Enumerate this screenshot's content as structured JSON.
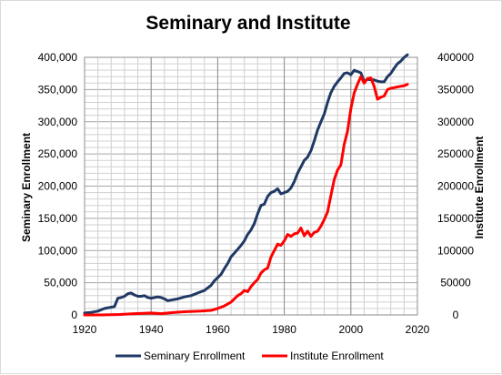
{
  "chart_data": {
    "type": "line",
    "title": "Seminary and Institute",
    "xlabel": "",
    "ylabel": "Seminary Enrollment",
    "y2label": "Institute Enrollment",
    "xlim": [
      1920,
      2020
    ],
    "ylim": [
      0,
      400000
    ],
    "y2lim": [
      0,
      400000
    ],
    "x_ticks": [
      "1920",
      "1940",
      "1960",
      "1980",
      "2000",
      "2020"
    ],
    "y_ticks": [
      "0",
      "50,000",
      "100,000",
      "150,000",
      "200,000",
      "250,000",
      "300,000",
      "350,000",
      "400,000"
    ],
    "y2_ticks": [
      "0",
      "50000",
      "100000",
      "150000",
      "200000",
      "250000",
      "300000",
      "350000",
      "400000"
    ],
    "grid": true,
    "legend_position": "bottom",
    "series": [
      {
        "name": "Seminary Enrollment",
        "color": "#1f3864",
        "axis": "left",
        "points": [
          [
            1920,
            3000
          ],
          [
            1922,
            4000
          ],
          [
            1924,
            6000
          ],
          [
            1926,
            10000
          ],
          [
            1928,
            12000
          ],
          [
            1929,
            13000
          ],
          [
            1930,
            26000
          ],
          [
            1931,
            27000
          ],
          [
            1932,
            29000
          ],
          [
            1933,
            33000
          ],
          [
            1934,
            34000
          ],
          [
            1935,
            31000
          ],
          [
            1936,
            29000
          ],
          [
            1937,
            29000
          ],
          [
            1938,
            30000
          ],
          [
            1939,
            27000
          ],
          [
            1940,
            26000
          ],
          [
            1941,
            27000
          ],
          [
            1942,
            28000
          ],
          [
            1943,
            27000
          ],
          [
            1944,
            25000
          ],
          [
            1945,
            22000
          ],
          [
            1946,
            23000
          ],
          [
            1947,
            24000
          ],
          [
            1948,
            25000
          ],
          [
            1950,
            28000
          ],
          [
            1952,
            30000
          ],
          [
            1954,
            34000
          ],
          [
            1956,
            38000
          ],
          [
            1957,
            42000
          ],
          [
            1958,
            46000
          ],
          [
            1959,
            53000
          ],
          [
            1960,
            58000
          ],
          [
            1961,
            63000
          ],
          [
            1962,
            72000
          ],
          [
            1963,
            80000
          ],
          [
            1964,
            90000
          ],
          [
            1965,
            96000
          ],
          [
            1966,
            102000
          ],
          [
            1967,
            108000
          ],
          [
            1968,
            115000
          ],
          [
            1969,
            125000
          ],
          [
            1970,
            132000
          ],
          [
            1971,
            142000
          ],
          [
            1972,
            157000
          ],
          [
            1973,
            170000
          ],
          [
            1974,
            172000
          ],
          [
            1975,
            184000
          ],
          [
            1976,
            190000
          ],
          [
            1977,
            192000
          ],
          [
            1978,
            196000
          ],
          [
            1979,
            188000
          ],
          [
            1980,
            190000
          ],
          [
            1981,
            192000
          ],
          [
            1982,
            197000
          ],
          [
            1983,
            207000
          ],
          [
            1984,
            220000
          ],
          [
            1985,
            230000
          ],
          [
            1986,
            240000
          ],
          [
            1987,
            245000
          ],
          [
            1988,
            255000
          ],
          [
            1989,
            270000
          ],
          [
            1990,
            287000
          ],
          [
            1991,
            300000
          ],
          [
            1992,
            312000
          ],
          [
            1993,
            330000
          ],
          [
            1994,
            345000
          ],
          [
            1995,
            355000
          ],
          [
            1996,
            362000
          ],
          [
            1997,
            368000
          ],
          [
            1998,
            375000
          ],
          [
            1999,
            376000
          ],
          [
            2000,
            373000
          ],
          [
            2001,
            380000
          ],
          [
            2002,
            378000
          ],
          [
            2003,
            376000
          ],
          [
            2004,
            363000
          ],
          [
            2005,
            366000
          ],
          [
            2006,
            365000
          ],
          [
            2007,
            365000
          ],
          [
            2008,
            363000
          ],
          [
            2009,
            362000
          ],
          [
            2010,
            362000
          ],
          [
            2011,
            370000
          ],
          [
            2012,
            375000
          ],
          [
            2013,
            383000
          ],
          [
            2014,
            390000
          ],
          [
            2015,
            394000
          ],
          [
            2016,
            400000
          ],
          [
            2017,
            404000
          ]
        ]
      },
      {
        "name": "Institute Enrollment",
        "color": "#ff0000",
        "axis": "right",
        "points": [
          [
            1920,
            0
          ],
          [
            1925,
            0
          ],
          [
            1930,
            500
          ],
          [
            1935,
            2000
          ],
          [
            1940,
            3000
          ],
          [
            1943,
            2000
          ],
          [
            1945,
            3000
          ],
          [
            1947,
            4000
          ],
          [
            1950,
            5000
          ],
          [
            1955,
            6000
          ],
          [
            1958,
            7000
          ],
          [
            1960,
            10000
          ],
          [
            1962,
            14000
          ],
          [
            1964,
            20000
          ],
          [
            1966,
            30000
          ],
          [
            1967,
            33000
          ],
          [
            1968,
            38000
          ],
          [
            1969,
            36000
          ],
          [
            1970,
            44000
          ],
          [
            1971,
            50000
          ],
          [
            1972,
            55000
          ],
          [
            1973,
            65000
          ],
          [
            1974,
            70000
          ],
          [
            1975,
            73000
          ],
          [
            1976,
            90000
          ],
          [
            1977,
            100000
          ],
          [
            1978,
            110000
          ],
          [
            1979,
            108000
          ],
          [
            1980,
            115000
          ],
          [
            1981,
            125000
          ],
          [
            1982,
            122000
          ],
          [
            1983,
            126000
          ],
          [
            1984,
            127000
          ],
          [
            1985,
            135000
          ],
          [
            1986,
            123000
          ],
          [
            1987,
            130000
          ],
          [
            1988,
            122000
          ],
          [
            1989,
            128000
          ],
          [
            1990,
            130000
          ],
          [
            1991,
            138000
          ],
          [
            1992,
            148000
          ],
          [
            1993,
            160000
          ],
          [
            1994,
            185000
          ],
          [
            1995,
            210000
          ],
          [
            1996,
            225000
          ],
          [
            1997,
            233000
          ],
          [
            1998,
            265000
          ],
          [
            1999,
            285000
          ],
          [
            2000,
            320000
          ],
          [
            2001,
            345000
          ],
          [
            2002,
            358000
          ],
          [
            2003,
            370000
          ],
          [
            2004,
            360000
          ],
          [
            2005,
            367000
          ],
          [
            2006,
            368000
          ],
          [
            2007,
            355000
          ],
          [
            2008,
            335000
          ],
          [
            2009,
            338000
          ],
          [
            2010,
            340000
          ],
          [
            2011,
            350000
          ],
          [
            2012,
            352000
          ],
          [
            2013,
            353000
          ],
          [
            2014,
            354000
          ],
          [
            2015,
            355000
          ],
          [
            2016,
            356000
          ],
          [
            2017,
            358000
          ]
        ]
      }
    ]
  }
}
